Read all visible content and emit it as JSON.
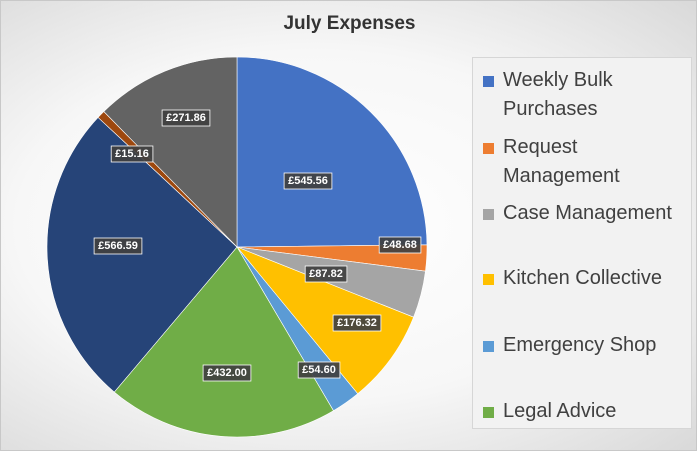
{
  "chart_data": {
    "type": "pie",
    "title": "July Expenses",
    "currency_prefix": "£",
    "slices": [
      {
        "name": "Weekly Bulk Purchases",
        "value": 545.56,
        "label": "£545.56",
        "color": "#4472C4"
      },
      {
        "name": "Request Management",
        "value": 48.68,
        "label": "£48.68",
        "color": "#ED7D31"
      },
      {
        "name": "Case Management",
        "value": 87.82,
        "label": "£87.82",
        "color": "#A5A5A5"
      },
      {
        "name": "Kitchen Collective",
        "value": 176.32,
        "label": "£176.32",
        "color": "#FFC000"
      },
      {
        "name": "Emergency Shop",
        "value": 54.6,
        "label": "£54.60",
        "color": "#5B9BD5"
      },
      {
        "name": "Legal Advice",
        "value": 432.0,
        "label": "£432.00",
        "color": "#70AD47"
      },
      {
        "name": "",
        "value": 566.59,
        "label": "£566.59",
        "color": "#264478"
      },
      {
        "name": "",
        "value": 15.16,
        "label": "£15.16",
        "color": "#9E480E"
      },
      {
        "name": "",
        "value": 271.86,
        "label": "£271.86",
        "color": "#636363"
      }
    ],
    "legend": {
      "placement": "right",
      "entries": [
        {
          "label": "Weekly Bulk Purchases",
          "color": "#4472C4"
        },
        {
          "label": "Request Management",
          "color": "#ED7D31"
        },
        {
          "label": "Case Management",
          "color": "#A5A5A5"
        },
        {
          "label": "Kitchen Collective",
          "color": "#FFC000"
        },
        {
          "label": "Emergency Shop",
          "color": "#5B9BD5"
        },
        {
          "label": "Legal Advice",
          "color": "#70AD47"
        }
      ]
    }
  }
}
